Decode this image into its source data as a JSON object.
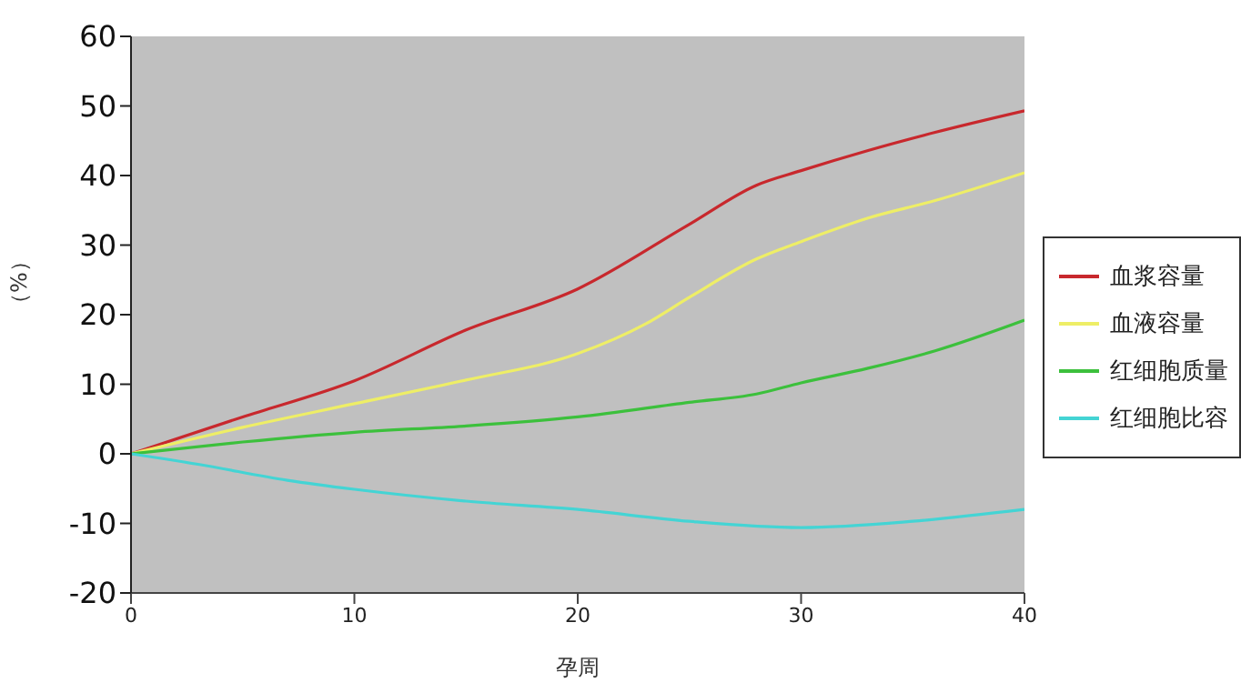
{
  "chart_data": {
    "type": "line",
    "xlabel": "孕周",
    "ylabel": "（%）",
    "xlim": [
      0,
      40
    ],
    "xticks": [
      0,
      10,
      20,
      30,
      40
    ],
    "ylim": [
      -20,
      60
    ],
    "yticks": [
      -20,
      -10,
      0,
      10,
      20,
      30,
      40,
      50,
      60
    ],
    "grid": false,
    "legend": "right",
    "marker": "none",
    "line_style": "solid",
    "series": [
      {
        "name": "血浆容量",
        "color": "#c8282d",
        "x": [
          0,
          5,
          10,
          15,
          20,
          25,
          28,
          30,
          33,
          36,
          40
        ],
        "values": [
          0,
          5.3,
          10.5,
          17.8,
          23.7,
          33,
          38.6,
          40.7,
          43.6,
          46.2,
          49.3
        ]
      },
      {
        "name": "血液容量",
        "color": "#eeee66",
        "x": [
          0,
          5,
          10,
          15,
          20,
          23,
          25,
          28,
          30,
          33,
          36,
          40
        ],
        "values": [
          0,
          3.8,
          7.2,
          10.6,
          14.4,
          18.6,
          22.5,
          28,
          30.5,
          33.9,
          36.4,
          40.4
        ]
      },
      {
        "name": "红细胞质量",
        "color": "#3cc03c",
        "x": [
          0,
          5,
          10,
          15,
          20,
          25,
          28,
          30,
          33,
          36,
          40
        ],
        "values": [
          0,
          1.7,
          3.1,
          4,
          5.3,
          7.4,
          8.6,
          10.2,
          12.3,
          14.8,
          19.2
        ]
      },
      {
        "name": "红细胞比容",
        "color": "#44d4d4",
        "x": [
          0,
          3,
          7,
          10,
          15,
          20,
          25,
          30,
          35,
          40
        ],
        "values": [
          0,
          -1.5,
          -3.8,
          -5.1,
          -6.8,
          -8,
          -9.7,
          -10.6,
          -9.7,
          -8
        ]
      }
    ]
  }
}
